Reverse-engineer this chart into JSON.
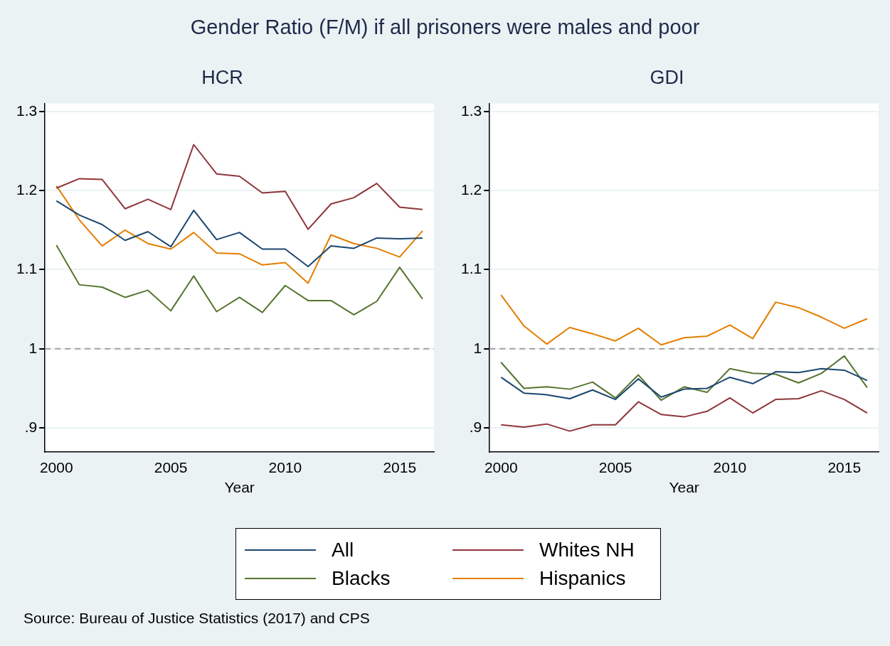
{
  "chart_data": [
    {
      "type": "line",
      "title": "Gender Ratio (F/M) if all prisoners were males and poor",
      "subtitle": "HCR",
      "xlabel": "Year",
      "x": [
        2000,
        2001,
        2002,
        2003,
        2004,
        2005,
        2006,
        2007,
        2008,
        2009,
        2010,
        2011,
        2012,
        2013,
        2014,
        2015,
        2016
      ],
      "series": [
        {
          "name": "All",
          "color": "#1a476f",
          "values": [
            1.187,
            1.169,
            1.157,
            1.137,
            1.148,
            1.129,
            1.175,
            1.138,
            1.147,
            1.126,
            1.126,
            1.104,
            1.13,
            1.127,
            1.14,
            1.139,
            1.14
          ]
        },
        {
          "name": "Whites NH",
          "color": "#90353b",
          "values": [
            1.203,
            1.215,
            1.214,
            1.177,
            1.189,
            1.176,
            1.258,
            1.221,
            1.218,
            1.197,
            1.199,
            1.151,
            1.183,
            1.191,
            1.209,
            1.179,
            1.176
          ]
        },
        {
          "name": "Blacks",
          "color": "#55752f",
          "values": [
            1.131,
            1.081,
            1.078,
            1.065,
            1.074,
            1.048,
            1.092,
            1.047,
            1.065,
            1.046,
            1.08,
            1.061,
            1.061,
            1.043,
            1.06,
            1.103,
            1.063
          ]
        },
        {
          "name": "Hispanics",
          "color": "#e37e00",
          "values": [
            1.206,
            1.163,
            1.13,
            1.15,
            1.133,
            1.126,
            1.147,
            1.121,
            1.12,
            1.106,
            1.109,
            1.083,
            1.144,
            1.133,
            1.127,
            1.116,
            1.149
          ]
        }
      ],
      "xlim": [
        1999.5,
        2016.5
      ],
      "xticks": [
        2000,
        2005,
        2010,
        2015
      ],
      "ylim": [
        0.87,
        1.31
      ],
      "yticks": [
        {
          "value": 0.9,
          "label": ".9"
        },
        1,
        1.1,
        1.2,
        1.3
      ],
      "ref_lines": [
        {
          "axis": "y",
          "value": 1,
          "color": "#a0a0a0",
          "line_style": "dashed"
        }
      ],
      "grid": "y",
      "legend": "bottom",
      "line_style": "solid",
      "marker": "none",
      "annotations": [
        "Source: Bureau of Justice Statistics (2017) and CPS"
      ]
    },
    {
      "type": "line",
      "subtitle": "GDI",
      "xlabel": "Year",
      "x": [
        2000,
        2001,
        2002,
        2003,
        2004,
        2005,
        2006,
        2007,
        2008,
        2009,
        2010,
        2011,
        2012,
        2013,
        2014,
        2015,
        2016
      ],
      "series": [
        {
          "color": "#1a476f",
          "values": [
            0.964,
            0.944,
            0.942,
            0.937,
            0.948,
            0.936,
            0.962,
            0.939,
            0.949,
            0.95,
            0.964,
            0.956,
            0.971,
            0.97,
            0.975,
            0.973,
            0.96
          ]
        },
        {
          "color": "#90353b",
          "values": [
            0.904,
            0.901,
            0.905,
            0.896,
            0.904,
            0.904,
            0.933,
            0.917,
            0.914,
            0.921,
            0.938,
            0.919,
            0.936,
            0.937,
            0.947,
            0.936,
            0.919
          ]
        },
        {
          "color": "#55752f",
          "values": [
            0.983,
            0.95,
            0.952,
            0.949,
            0.958,
            0.938,
            0.967,
            0.935,
            0.952,
            0.945,
            0.975,
            0.969,
            0.968,
            0.957,
            0.969,
            0.991,
            0.951
          ]
        },
        {
          "color": "#e37e00",
          "values": [
            1.068,
            1.029,
            1.006,
            1.027,
            1.019,
            1.01,
            1.026,
            1.005,
            1.014,
            1.016,
            1.03,
            1.013,
            1.059,
            1.052,
            1.04,
            1.026,
            1.038
          ]
        }
      ],
      "xlim": [
        1999.5,
        2016.5
      ],
      "xticks": [
        2000,
        2005,
        2010,
        2015
      ],
      "ylim": [
        0.87,
        1.31
      ],
      "yticks": [
        {
          "value": 0.9,
          "label": ".9"
        },
        1,
        1.1,
        1.2,
        1.3
      ],
      "ref_lines": [
        {
          "axis": "y",
          "value": 1,
          "color": "#a0a0a0",
          "line_style": "dashed"
        }
      ],
      "grid": "y",
      "line_style": "solid",
      "marker": "none"
    }
  ]
}
